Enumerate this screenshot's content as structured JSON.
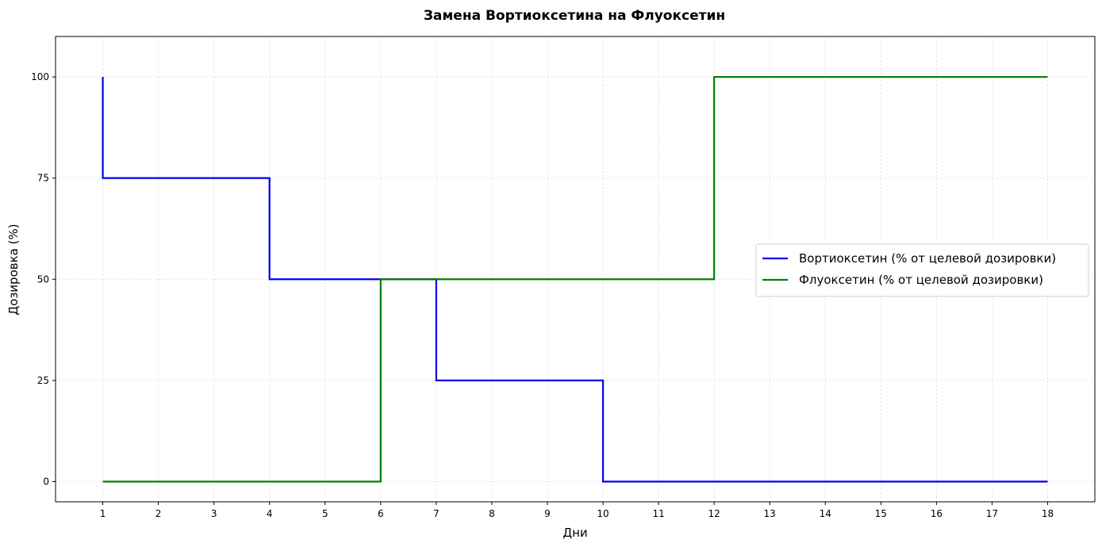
{
  "chart_data": {
    "type": "line",
    "title": "Замена Вортиоксетина на Флуоксетин",
    "xlabel": "Дни",
    "ylabel": "Дозировка (%)",
    "xlim": [
      0.15,
      18.85
    ],
    "ylim": [
      -5,
      110
    ],
    "xticks": [
      1,
      2,
      3,
      4,
      5,
      6,
      7,
      8,
      9,
      10,
      11,
      12,
      13,
      14,
      15,
      16,
      17,
      18
    ],
    "yticks": [
      0,
      25,
      50,
      75,
      100
    ],
    "grid": true,
    "legend_position": "center-right",
    "series": [
      {
        "name": "Вортиоксетин (% от целевой дозировки)",
        "color": "#0000ee",
        "step": "post",
        "points": [
          [
            1,
            100
          ],
          [
            1,
            75
          ],
          [
            4,
            75
          ],
          [
            4,
            50
          ],
          [
            7,
            50
          ],
          [
            7,
            25
          ],
          [
            10,
            25
          ],
          [
            10,
            0
          ],
          [
            18,
            0
          ]
        ]
      },
      {
        "name": "Флуоксетин (% от целевой дозировки)",
        "color": "#008000",
        "step": "post",
        "points": [
          [
            1,
            0
          ],
          [
            6,
            0
          ],
          [
            6,
            50
          ],
          [
            12,
            50
          ],
          [
            12,
            100
          ],
          [
            18,
            100
          ]
        ]
      }
    ]
  }
}
